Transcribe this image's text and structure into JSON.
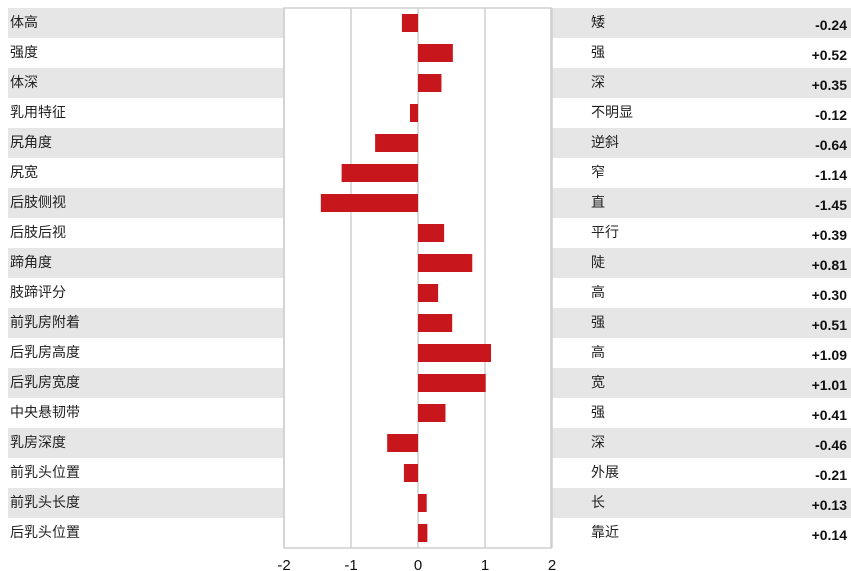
{
  "chart_data": {
    "type": "bar",
    "orientation": "horizontal",
    "title": "",
    "xlabel": "",
    "ylabel": "",
    "xlim": [
      -2,
      2
    ],
    "x_ticks": [
      -2,
      -1,
      0,
      1,
      2
    ],
    "grid": true,
    "bar_color": "#c8161d",
    "stripe_color": "#e6e6e6",
    "categories": [
      "体高",
      "强度",
      "体深",
      "乳用特征",
      "尻角度",
      "尻宽",
      "后肢侧视",
      "后肢后视",
      "蹄角度",
      "肢蹄评分",
      "前乳房附着",
      "后乳房高度",
      "后乳房宽度",
      "中央悬韧带",
      "乳房深度",
      "前乳头位置",
      "前乳头长度",
      "后乳头位置"
    ],
    "values": [
      -0.24,
      0.52,
      0.35,
      -0.12,
      -0.64,
      -1.14,
      -1.45,
      0.39,
      0.81,
      0.3,
      0.51,
      1.09,
      1.01,
      0.41,
      -0.46,
      -0.21,
      0.13,
      0.14
    ],
    "value_labels": [
      "-0.24",
      "+0.52",
      "+0.35",
      "-0.12",
      "-0.64",
      "-1.14",
      "-1.45",
      "+0.39",
      "+0.81",
      "+0.30",
      "+0.51",
      "+1.09",
      "+1.01",
      "+0.41",
      "-0.46",
      "-0.21",
      "+0.13",
      "+0.14"
    ],
    "descriptors": [
      "矮",
      "强",
      "深",
      "不明显",
      "逆斜",
      "窄",
      "直",
      "平行",
      "陡",
      "高",
      "强",
      "高",
      "宽",
      "强",
      "深",
      "外展",
      "长",
      "靠近"
    ]
  }
}
